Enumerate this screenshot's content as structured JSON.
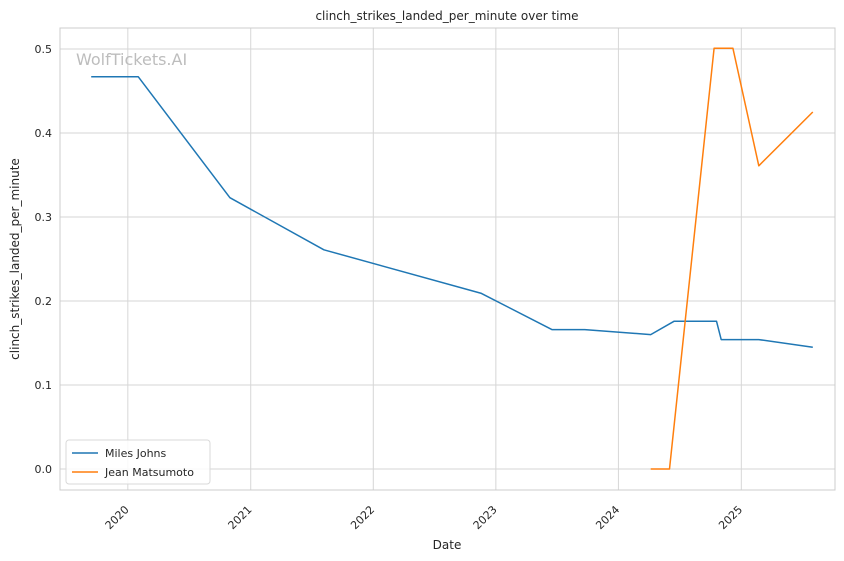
{
  "chart_data": {
    "type": "line",
    "title": "clinch_strikes_landed_per_minute over time",
    "xlabel": "Date",
    "ylabel": "clinch_strikes_landed_per_minute",
    "watermark": "WolfTickets.AI",
    "x_ticks": [
      "2020",
      "2021",
      "2022",
      "2023",
      "2024",
      "2025"
    ],
    "y_ticks": [
      "0.0",
      "0.1",
      "0.2",
      "0.3",
      "0.4",
      "0.5"
    ],
    "ylim": [
      -0.025,
      0.525
    ],
    "xlim": [
      "2019-06-13",
      "2025-10-07"
    ],
    "grid": true,
    "legend_position": "lower-left",
    "series": [
      {
        "name": "Miles Johns",
        "color": "#1f77b4",
        "points": [
          {
            "x": "2019-09-14",
            "y": 0.467
          },
          {
            "x": "2020-02-01",
            "y": 0.467
          },
          {
            "x": "2020-10-31",
            "y": 0.323
          },
          {
            "x": "2021-08-07",
            "y": 0.261
          },
          {
            "x": "2022-11-19",
            "y": 0.209
          },
          {
            "x": "2023-06-17",
            "y": 0.166
          },
          {
            "x": "2023-09-23",
            "y": 0.166
          },
          {
            "x": "2024-04-06",
            "y": 0.16
          },
          {
            "x": "2024-06-15",
            "y": 0.176
          },
          {
            "x": "2024-10-19",
            "y": 0.176
          },
          {
            "x": "2024-11-02",
            "y": 0.154
          },
          {
            "x": "2025-02-22",
            "y": 0.154
          },
          {
            "x": "2025-08-02",
            "y": 0.145
          }
        ]
      },
      {
        "name": "Jean Matsumoto",
        "color": "#ff7f0e",
        "points": [
          {
            "x": "2024-04-06",
            "y": 0.0
          },
          {
            "x": "2024-06-01",
            "y": 0.0
          },
          {
            "x": "2024-10-12",
            "y": 0.501
          },
          {
            "x": "2024-12-07",
            "y": 0.501
          },
          {
            "x": "2025-02-22",
            "y": 0.361
          },
          {
            "x": "2025-08-02",
            "y": 0.425
          }
        ]
      }
    ]
  }
}
